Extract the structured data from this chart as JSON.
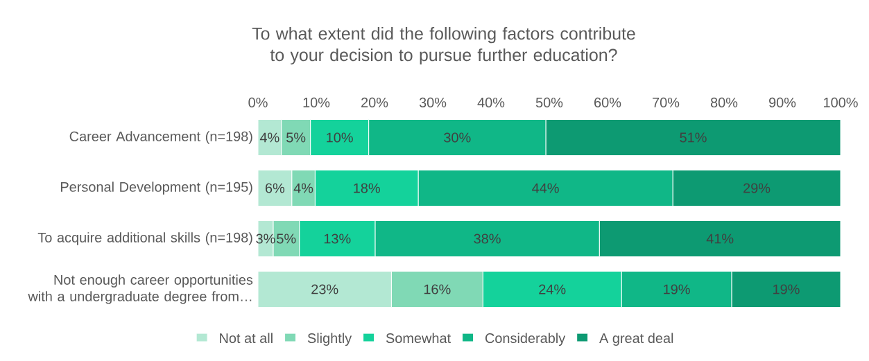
{
  "chart_data": {
    "type": "bar",
    "orientation": "horizontal",
    "stacked": true,
    "title": "To what extent did the following factors contribute to your decision to pursue further education?",
    "categories": [
      "Career Advancement (n=198)",
      "Personal Development (n=195)",
      "To acquire additional skills (n=198)",
      "Not enough career opportunities with a undergraduate degree from…"
    ],
    "xlim": [
      0,
      100
    ],
    "xticks": [
      {
        "value": 0,
        "label": "0%"
      },
      {
        "value": 10,
        "label": "10%"
      },
      {
        "value": 20,
        "label": "20%"
      },
      {
        "value": 30,
        "label": "30%"
      },
      {
        "value": 40,
        "label": "40%"
      },
      {
        "value": 50,
        "label": "50%"
      },
      {
        "value": 60,
        "label": "60%"
      },
      {
        "value": 70,
        "label": "70%"
      },
      {
        "value": 80,
        "label": "80%"
      },
      {
        "value": 90,
        "label": "90%"
      },
      {
        "value": 100,
        "label": "100%"
      }
    ],
    "legend": "bottom",
    "series": [
      {
        "name": "Not at all",
        "color": "#b3e8d3",
        "values": [
          4.0,
          5.8,
          2.6,
          22.9
        ],
        "value_labels": [
          "4%",
          "6%",
          "3%",
          "23%"
        ]
      },
      {
        "name": "Slightly",
        "color": "#80d9b5",
        "values": [
          5.0,
          4.0,
          4.5,
          15.7
        ],
        "value_labels": [
          "5%",
          "4%",
          "5%",
          "16%"
        ]
      },
      {
        "name": "Somewhat",
        "color": "#14d29b",
        "values": [
          10.0,
          17.7,
          13.0,
          23.8
        ],
        "value_labels": [
          "10%",
          "18%",
          "13%",
          "24%"
        ]
      },
      {
        "name": "Considerably",
        "color": "#10b787",
        "values": [
          30.4,
          43.7,
          38.5,
          18.9
        ],
        "value_labels": [
          "30%",
          "44%",
          "38%",
          "19%"
        ]
      },
      {
        "name": "A great deal",
        "color": "#0d9a72",
        "values": [
          50.6,
          28.8,
          41.4,
          18.7
        ],
        "value_labels": [
          "51%",
          "29%",
          "41%",
          "19%"
        ]
      }
    ]
  }
}
